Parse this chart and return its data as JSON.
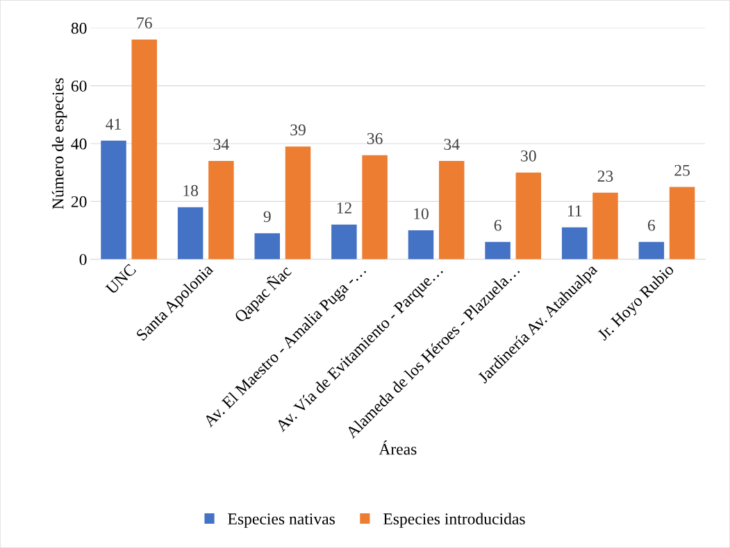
{
  "chart_data": {
    "type": "bar",
    "xlabel": "Áreas",
    "ylabel": "Número de especies",
    "categories": [
      "UNC",
      "Santa Apolonia",
      "Qapac Ñac",
      "Av. El Maestro - Amalia Puga -…",
      "Av. Vía de Evitamiento - Parque…",
      "Alameda de los Héroes - Plazuela…",
      "Jardinería Av. Atahualpa",
      "Jr. Hoyo Rubio"
    ],
    "series": [
      {
        "name": "Especies nativas",
        "color": "#4472c4",
        "values": [
          41,
          18,
          9,
          12,
          10,
          6,
          11,
          6
        ]
      },
      {
        "name": "Especies introducidas",
        "color": "#ed7d31",
        "values": [
          76,
          34,
          39,
          36,
          34,
          30,
          23,
          25
        ]
      }
    ],
    "ylim": [
      0,
      80
    ],
    "yticks": [
      0,
      20,
      40,
      60,
      80
    ],
    "grid": "y",
    "legend": "bottom",
    "data_labels": true
  }
}
